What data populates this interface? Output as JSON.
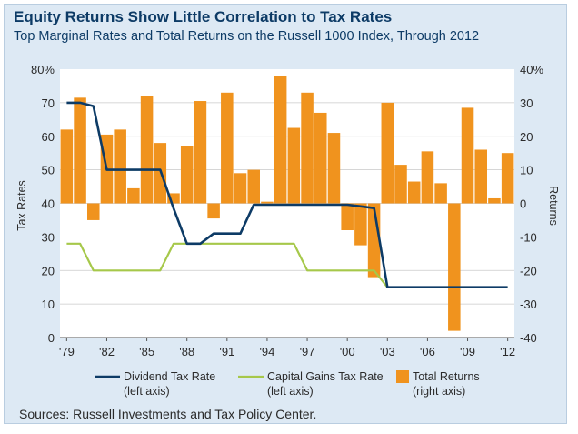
{
  "title": "Equity Returns Show Little Correlation to Tax Rates",
  "subtitle": "Top Marginal Rates and Total Returns on the Russell 1000 Index, Through 2012",
  "source": "Sources: Russell Investments and Tax Policy Center.",
  "colors": {
    "background": "#dde9f4",
    "plot_background": "#ffffff",
    "title": "#0d3b66",
    "dividend": "#0d3b66",
    "capital_gains": "#a6c84a",
    "returns": "#f0931e"
  },
  "chart_data": {
    "type": "bar",
    "ylabel": "Tax Rates",
    "y2label": "Returns",
    "ylim": [
      0,
      80
    ],
    "y2lim": [
      -40,
      40
    ],
    "yticks": [
      "0",
      "10",
      "20",
      "30",
      "40",
      "50",
      "60",
      "70",
      "80%"
    ],
    "y2ticks": [
      "-40",
      "-30",
      "-20",
      "-10",
      "0",
      "10",
      "20",
      "30",
      "40%"
    ],
    "yticks_values": [
      0,
      10,
      20,
      30,
      40,
      50,
      60,
      70,
      80
    ],
    "y2ticks_values": [
      -40,
      -30,
      -20,
      -10,
      0,
      10,
      20,
      30,
      40
    ],
    "xtick_labels": [
      "'79",
      "'82",
      "'85",
      "'88",
      "'91",
      "'94",
      "'97",
      "'00",
      "'03",
      "'06",
      "'09",
      "'12"
    ],
    "xtick_years": [
      1979,
      1982,
      1985,
      1988,
      1991,
      1994,
      1997,
      2000,
      2003,
      2006,
      2009,
      2012
    ],
    "grid": true,
    "legend_position": "bottom",
    "years": [
      1979,
      1980,
      1981,
      1982,
      1983,
      1984,
      1985,
      1986,
      1987,
      1988,
      1989,
      1990,
      1991,
      1992,
      1993,
      1994,
      1995,
      1996,
      1997,
      1998,
      1999,
      2000,
      2001,
      2002,
      2003,
      2004,
      2005,
      2006,
      2007,
      2008,
      2009,
      2010,
      2011,
      2012
    ],
    "series": [
      {
        "name": "Total Returns",
        "legend_label": [
          "Total Returns",
          "(right axis)"
        ],
        "axis": "right",
        "kind": "bar",
        "values": [
          22,
          31.5,
          -5,
          20.5,
          22,
          4.5,
          32,
          18,
          3,
          17,
          30.5,
          -4.5,
          33,
          9,
          10,
          0.5,
          38,
          22.5,
          33,
          27,
          21,
          -8,
          -12.5,
          -22,
          30,
          11.5,
          6.5,
          15.5,
          6,
          -38,
          28.5,
          16,
          1.5,
          15
        ]
      },
      {
        "name": "Dividend Tax Rate",
        "legend_label": [
          "Dividend Tax Rate",
          "(left axis)"
        ],
        "axis": "left",
        "kind": "step-line",
        "values": [
          70,
          70,
          69,
          50,
          50,
          50,
          50,
          50,
          38.5,
          28,
          28,
          31,
          31,
          31,
          39.6,
          39.6,
          39.6,
          39.6,
          39.6,
          39.6,
          39.6,
          39.6,
          39.1,
          38.6,
          15,
          15,
          15,
          15,
          15,
          15,
          15,
          15,
          15,
          15
        ]
      },
      {
        "name": "Capital Gains Tax Rate",
        "legend_label": [
          "Capital Gains Tax Rate",
          "(left axis)"
        ],
        "axis": "left",
        "kind": "step-line",
        "values": [
          28,
          28,
          20,
          20,
          20,
          20,
          20,
          20,
          28,
          28,
          28,
          28,
          28,
          28,
          28,
          28,
          28,
          28,
          20,
          20,
          20,
          20,
          20,
          20,
          15,
          15,
          15,
          15,
          15,
          15,
          15,
          15,
          15,
          15
        ]
      }
    ]
  }
}
